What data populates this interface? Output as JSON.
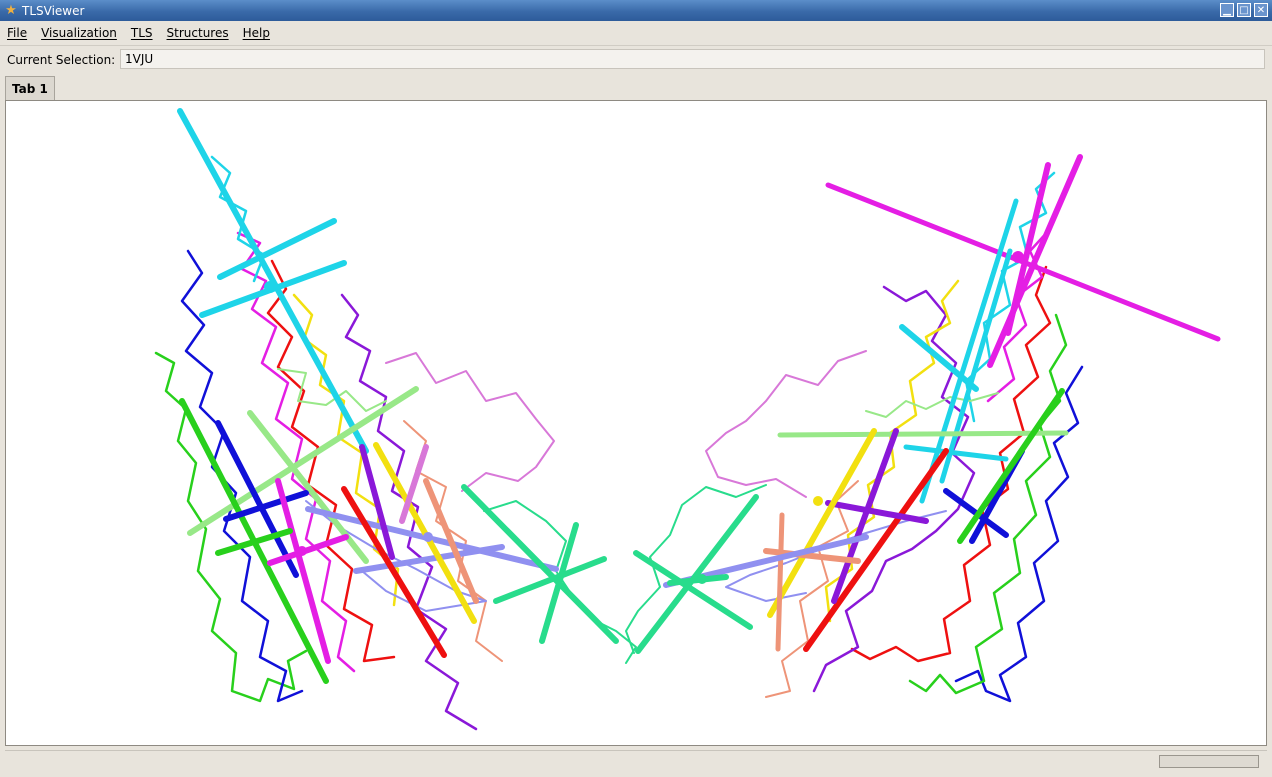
{
  "window": {
    "title": "TLSViewer",
    "icon": "star-icon"
  },
  "menu": {
    "items": [
      {
        "label": "File"
      },
      {
        "label": "Visualization"
      },
      {
        "label": "TLS"
      },
      {
        "label": "Structures"
      },
      {
        "label": "Help"
      }
    ]
  },
  "selection": {
    "label": "Current Selection:",
    "value": "1VJU"
  },
  "tabs": [
    {
      "label": "Tab 1",
      "active": true
    }
  ],
  "colors": {
    "titlebar": "#3a6aa9",
    "cyan": "#1ed4e8",
    "magenta": "#e41ee4",
    "red": "#ee1010",
    "blue": "#1010d8",
    "green": "#28d01c",
    "lightgreen": "#98e888",
    "yellow": "#f2e010",
    "purple": "#8a18d8",
    "violet": "#d878d8",
    "salmon": "#ee9478",
    "periwinkle": "#9090f0",
    "seagreen": "#28dc8c"
  }
}
